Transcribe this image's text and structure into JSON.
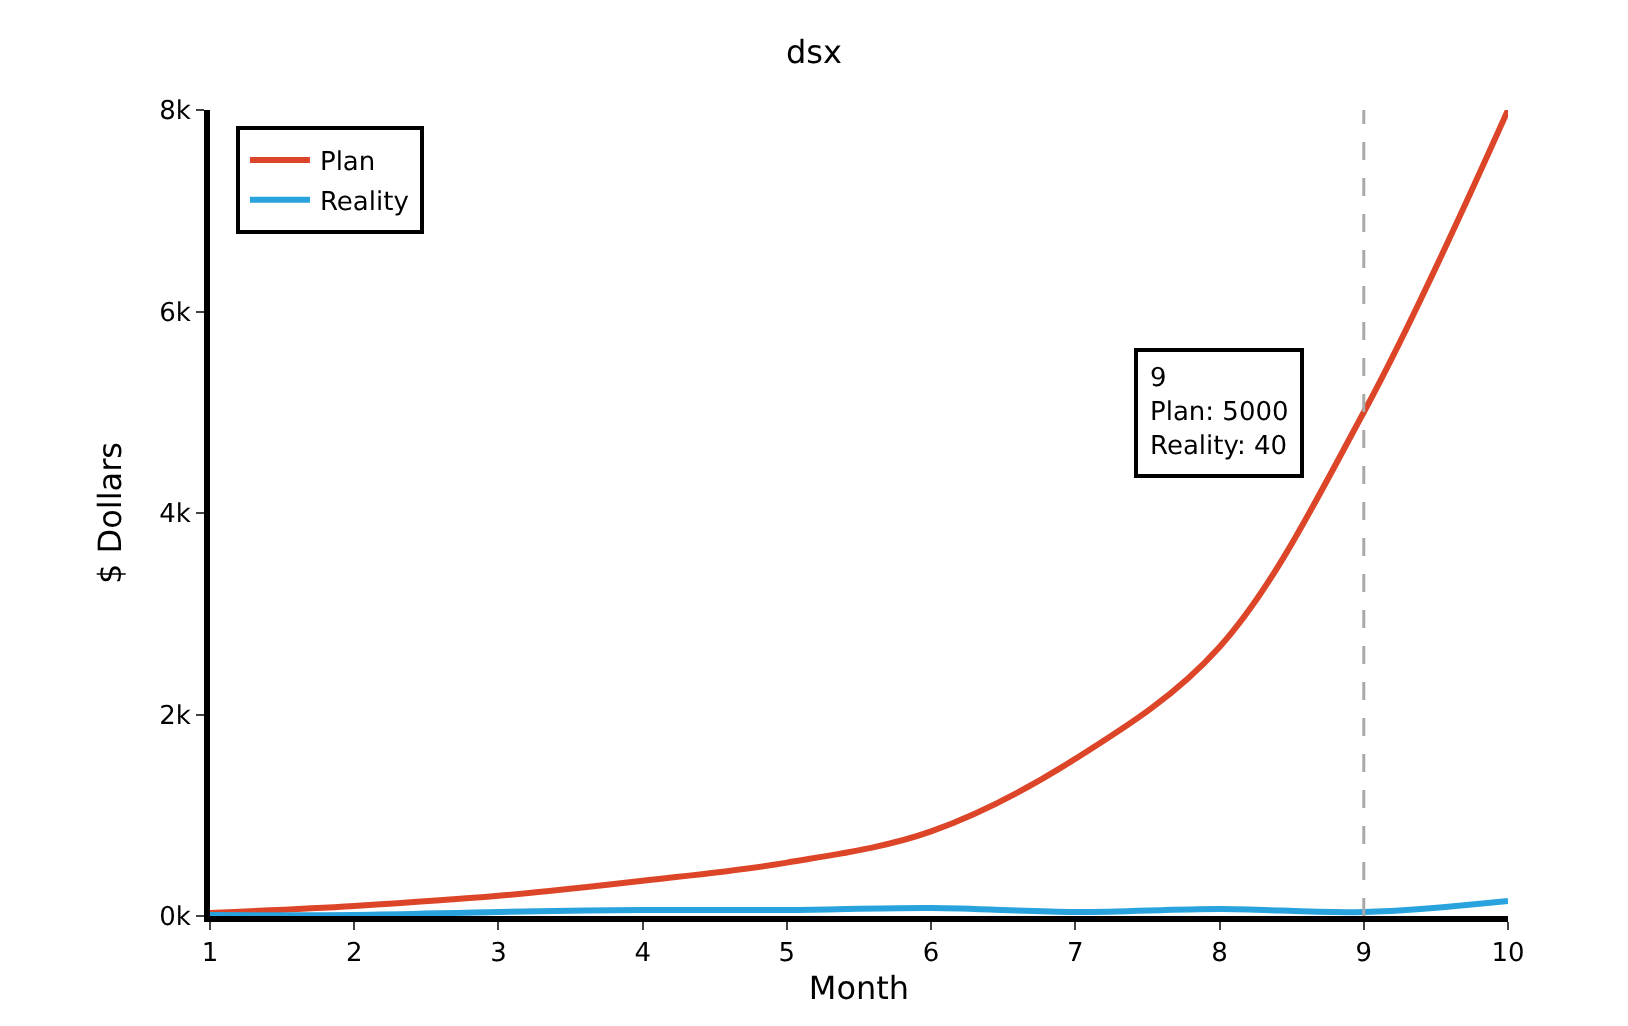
{
  "chart_data": {
    "type": "line",
    "title": "dsx",
    "xlabel": "Month",
    "ylabel": "$ Dollars",
    "x": [
      1,
      2,
      3,
      4,
      5,
      6,
      7,
      8,
      9,
      10
    ],
    "series": [
      {
        "name": "Plan",
        "color": "#dd4528",
        "values": [
          30,
          100,
          200,
          350,
          530,
          840,
          1560,
          2670,
          5000,
          8000
        ]
      },
      {
        "name": "Reality",
        "color": "#28a3dd",
        "values": [
          10,
          10,
          40,
          60,
          60,
          80,
          40,
          70,
          40,
          150
        ]
      }
    ],
    "xlim": [
      1,
      10
    ],
    "xticks": [
      1,
      2,
      3,
      4,
      5,
      6,
      7,
      8,
      9,
      10
    ],
    "ylim": [
      0,
      8000
    ],
    "yticks": [
      {
        "value": 0,
        "label": "0k"
      },
      {
        "value": 2000,
        "label": "2k"
      },
      {
        "value": 4000,
        "label": "4k"
      },
      {
        "value": 6000,
        "label": "6k"
      },
      {
        "value": 8000,
        "label": "8k"
      }
    ],
    "ref_lines": [
      {
        "axis": "x",
        "value": 9,
        "color": "#aaaaaa",
        "line_style": "dashed"
      }
    ],
    "annotations": [
      {
        "text": "9\nPlan: 5000\nReality: 40",
        "x": 9,
        "y": 5000
      }
    ],
    "legend": "top left",
    "marker": "none",
    "line_style": "solid"
  }
}
